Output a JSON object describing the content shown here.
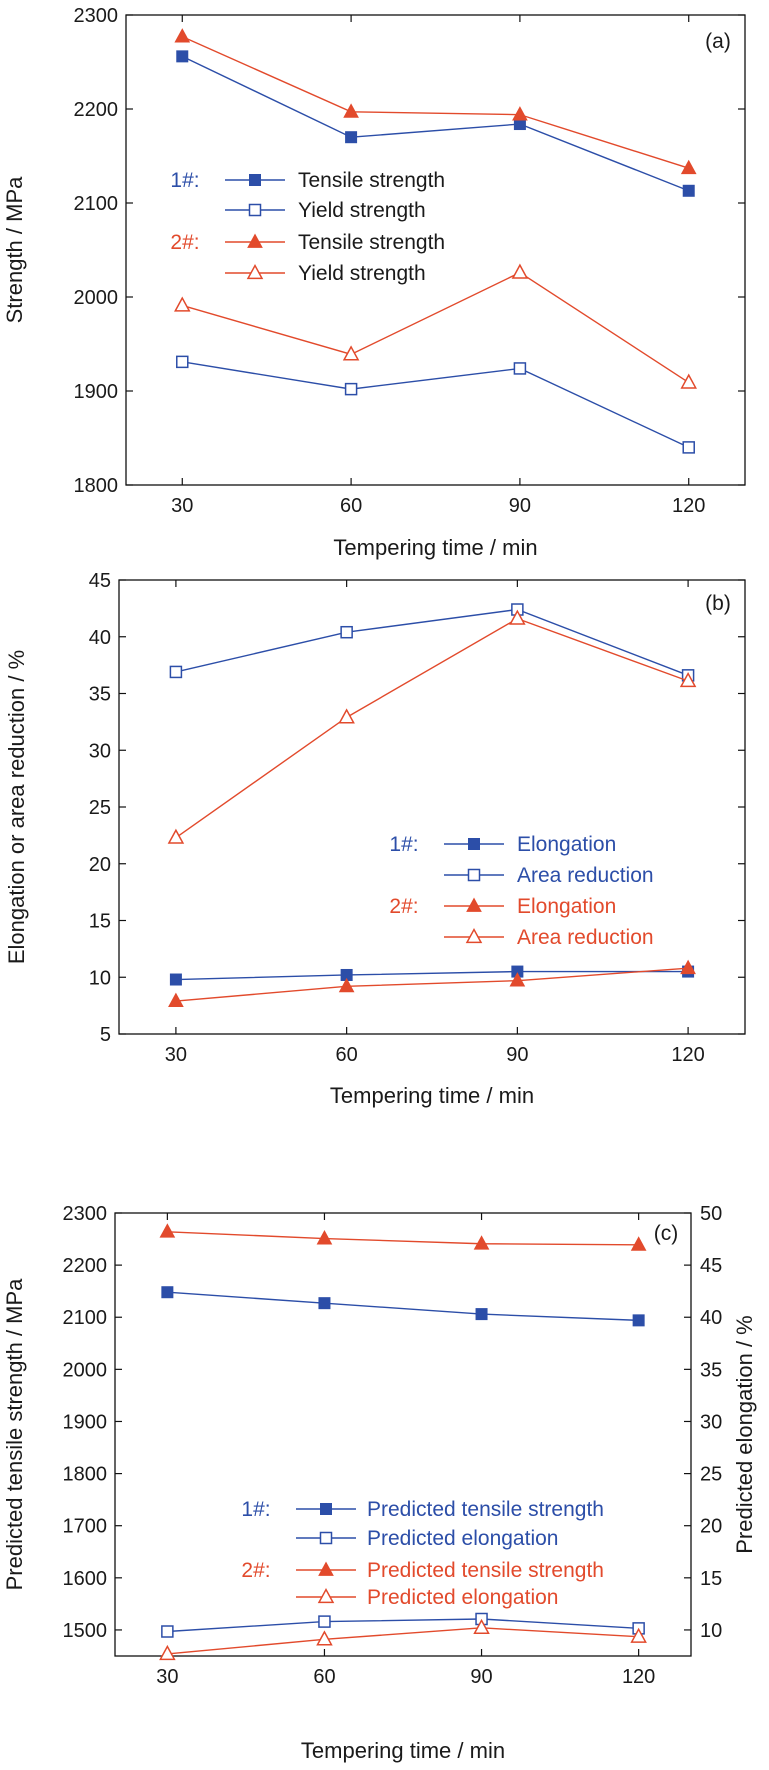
{
  "colors": {
    "series1": "#2c4ea8",
    "series2": "#e24a2c",
    "axis": "#111111"
  },
  "chart_data": [
    {
      "type": "line",
      "panel_label": "(a)",
      "xlabel": "Tempering time / min",
      "ylabel": "Strength / MPa",
      "x": [
        30,
        60,
        90,
        120
      ],
      "xlim": [
        20,
        130
      ],
      "ylim": [
        1800,
        2300
      ],
      "xticks": [
        30,
        60,
        90,
        120
      ],
      "yticks": [
        1800,
        1900,
        2000,
        2100,
        2200,
        2300
      ],
      "legend_position": "center-left",
      "legend_groups": [
        {
          "group": "1#:",
          "color": "#2c4ea8",
          "items": [
            {
              "label": "Tensile strength",
              "marker": "square-filled"
            },
            {
              "label": "Yield strength",
              "marker": "square-open"
            }
          ]
        },
        {
          "group": "2#:",
          "color": "#e24a2c",
          "items": [
            {
              "label": "Tensile strength",
              "marker": "triangle-filled"
            },
            {
              "label": "Yield strength",
              "marker": "triangle-open"
            }
          ]
        }
      ],
      "series": [
        {
          "group": "1#",
          "label": "Tensile strength",
          "color": "#2c4ea8",
          "marker": "square-filled",
          "values": [
            2256,
            2170,
            2184,
            2113
          ]
        },
        {
          "group": "1#",
          "label": "Yield strength",
          "color": "#2c4ea8",
          "marker": "square-open",
          "values": [
            1931,
            1902,
            1924,
            1840
          ]
        },
        {
          "group": "2#",
          "label": "Tensile strength",
          "color": "#e24a2c",
          "marker": "triangle-filled",
          "values": [
            2277,
            2197,
            2194,
            2137
          ]
        },
        {
          "group": "2#",
          "label": "Yield strength",
          "color": "#e24a2c",
          "marker": "triangle-open",
          "values": [
            1991,
            1939,
            2026,
            1909
          ]
        }
      ]
    },
    {
      "type": "line",
      "panel_label": "(b)",
      "xlabel": "Tempering time / min",
      "ylabel": "Elongation or area reduction / %",
      "x": [
        30,
        60,
        90,
        120
      ],
      "xlim": [
        20,
        130
      ],
      "ylim": [
        5,
        45
      ],
      "xticks": [
        30,
        60,
        90,
        120
      ],
      "yticks": [
        5,
        10,
        15,
        20,
        25,
        30,
        35,
        40,
        45
      ],
      "legend_position": "center-right",
      "legend_groups": [
        {
          "group": "1#:",
          "color": "#2c4ea8",
          "items": [
            {
              "label": "Elongation",
              "marker": "square-filled"
            },
            {
              "label": "Area reduction",
              "marker": "square-open"
            }
          ]
        },
        {
          "group": "2#:",
          "color": "#e24a2c",
          "items": [
            {
              "label": "Elongation",
              "marker": "triangle-filled"
            },
            {
              "label": "Area reduction",
              "marker": "triangle-open"
            }
          ]
        }
      ],
      "series": [
        {
          "group": "1#",
          "label": "Elongation",
          "color": "#2c4ea8",
          "marker": "square-filled",
          "values": [
            9.8,
            10.2,
            10.5,
            10.5
          ]
        },
        {
          "group": "1#",
          "label": "Area reduction",
          "color": "#2c4ea8",
          "marker": "square-open",
          "values": [
            36.9,
            40.4,
            42.4,
            36.6
          ]
        },
        {
          "group": "2#",
          "label": "Elongation",
          "color": "#e24a2c",
          "marker": "triangle-filled",
          "values": [
            7.9,
            9.2,
            9.7,
            10.8
          ]
        },
        {
          "group": "2#",
          "label": "Area reduction",
          "color": "#e24a2c",
          "marker": "triangle-open",
          "values": [
            22.3,
            32.9,
            41.6,
            36.1
          ]
        }
      ]
    },
    {
      "type": "line",
      "panel_label": "(c)",
      "xlabel": "Tempering time / min",
      "ylabel": "Predicted tensile strength / MPa",
      "y2label": "Predicted elongation / %",
      "x": [
        30,
        60,
        90,
        120
      ],
      "xlim": [
        20,
        130
      ],
      "ylim": [
        1450,
        2300
      ],
      "y2lim": [
        7.5,
        50
      ],
      "xticks": [
        30,
        60,
        90,
        120
      ],
      "yticks": [
        1500,
        1600,
        1700,
        1800,
        1900,
        2000,
        2100,
        2200,
        2300
      ],
      "y2ticks": [
        10,
        15,
        20,
        25,
        30,
        35,
        40,
        45,
        50
      ],
      "legend_position": "lower-center",
      "legend_groups": [
        {
          "group": "1#:",
          "color": "#2c4ea8",
          "items": [
            {
              "label": "Predicted tensile strength",
              "marker": "square-filled"
            },
            {
              "label": "Predicted elongation",
              "marker": "square-open"
            }
          ]
        },
        {
          "group": "2#:",
          "color": "#e24a2c",
          "items": [
            {
              "label": "Predicted tensile strength",
              "marker": "triangle-filled"
            },
            {
              "label": "Predicted elongation",
              "marker": "triangle-open"
            }
          ]
        }
      ],
      "series": [
        {
          "group": "1#",
          "label": "Predicted tensile strength",
          "axis": "left",
          "color": "#2c4ea8",
          "marker": "square-filled",
          "values": [
            2148,
            2127,
            2106,
            2094
          ]
        },
        {
          "group": "1#",
          "label": "Predicted elongation",
          "axis": "left",
          "color": "#2c4ea8",
          "marker": "square-open",
          "values": [
            1497,
            1516,
            1521,
            1503
          ]
        },
        {
          "group": "2#",
          "label": "Predicted tensile strength",
          "axis": "left",
          "color": "#e24a2c",
          "marker": "triangle-filled",
          "values": [
            2264,
            2251,
            2241,
            2239
          ]
        },
        {
          "group": "2#",
          "label": "Predicted elongation",
          "axis": "left",
          "color": "#e24a2c",
          "marker": "triangle-open",
          "values": [
            1454,
            1482,
            1504,
            1487
          ]
        }
      ]
    }
  ]
}
